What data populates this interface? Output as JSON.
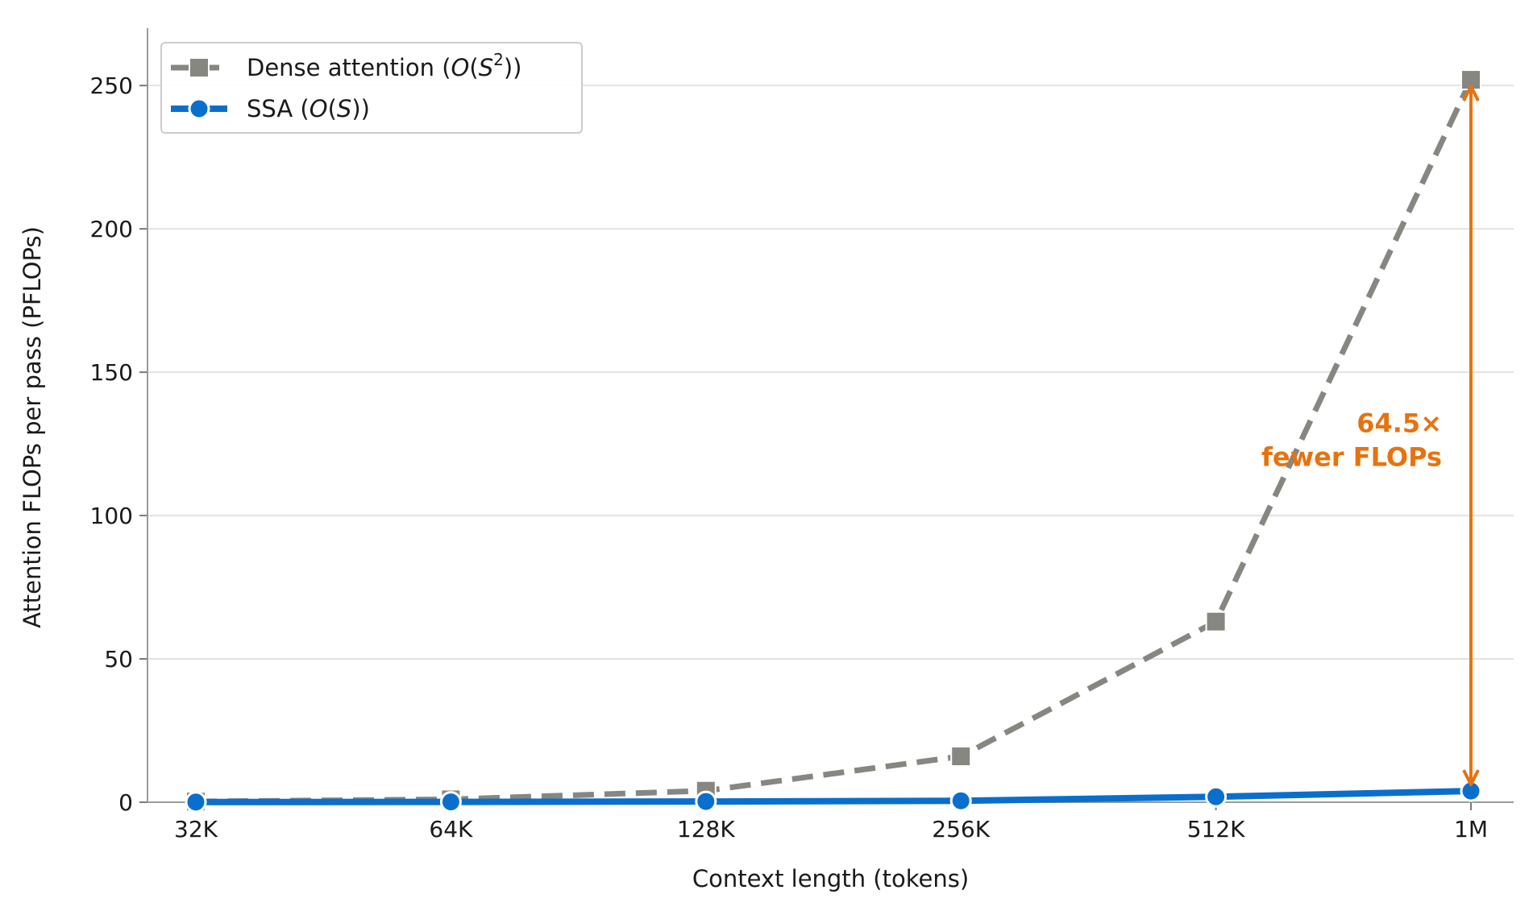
{
  "chart_data": {
    "type": "line",
    "categories": [
      "32K",
      "64K",
      "128K",
      "256K",
      "512K",
      "1M"
    ],
    "series": [
      {
        "name": "Dense attention  (O(S²))",
        "name_parts": {
          "prefix": "Dense attention  (",
          "O": "O",
          "open": "(",
          "S": "S",
          "sup": "2",
          "close": "))"
        },
        "values": [
          0.25,
          1.0,
          4.0,
          16.0,
          63.0,
          252.0
        ],
        "color": "#878782",
        "style": "dashed",
        "marker": "square"
      },
      {
        "name": "SSA  (O(S))",
        "name_parts": {
          "prefix": "SSA  (",
          "O": "O",
          "open": "(",
          "S": "S",
          "close": "))"
        },
        "values": [
          0.06,
          0.12,
          0.25,
          0.5,
          1.9,
          3.9
        ],
        "color": "#0a6fcc",
        "style": "solid",
        "marker": "circle"
      }
    ],
    "title": "",
    "xlabel": "Context length (tokens)",
    "ylabel": "Attention FLOPs per pass (PFLOPs)",
    "ylim": [
      0,
      270
    ],
    "yticks": [
      0,
      50,
      100,
      150,
      200,
      250
    ],
    "grid": "horizontal",
    "legend": "top-left",
    "annotation": {
      "line1": "64.5×",
      "line2": "fewer FLOPs",
      "color": "#e6730f",
      "at_category": "1M"
    }
  }
}
